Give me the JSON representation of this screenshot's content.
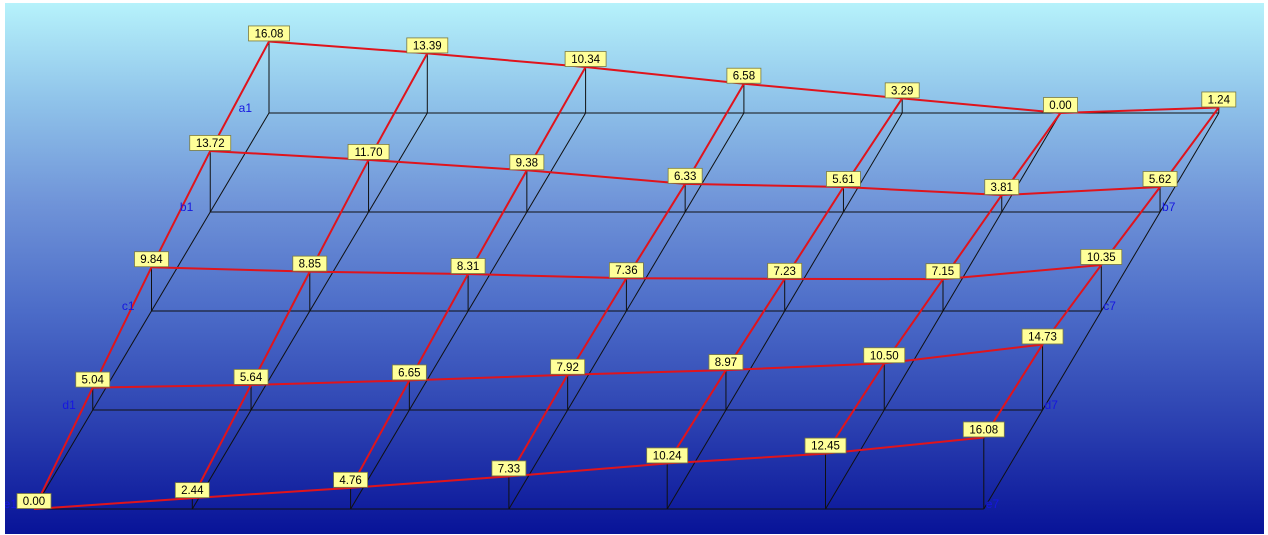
{
  "rows": [
    "a1",
    "b1",
    "c1",
    "d1",
    "e1"
  ],
  "end_labels": [
    "",
    "b7",
    "c7",
    "d7",
    "e7"
  ],
  "values": [
    [
      "16.08",
      "13.39",
      "10.34",
      "6.58",
      "3.29",
      "0.00",
      "1.24"
    ],
    [
      "13.72",
      "11.70",
      "9.38",
      "6.33",
      "5.61",
      "3.81",
      "5.62"
    ],
    [
      "9.84",
      "8.85",
      "8.31",
      "7.36",
      "7.23",
      "7.15",
      "10.35"
    ],
    [
      "5.04",
      "5.64",
      "6.65",
      "7.92",
      "8.97",
      "10.50",
      "14.73"
    ],
    [
      "0.00",
      "2.44",
      "4.76",
      "7.33",
      "10.24",
      "12.45",
      "16.08"
    ]
  ],
  "colors": {
    "surface": "#e0141c",
    "grid": "#101010",
    "label_bg": "#ffff99",
    "axis_label": "#1616e0"
  }
}
